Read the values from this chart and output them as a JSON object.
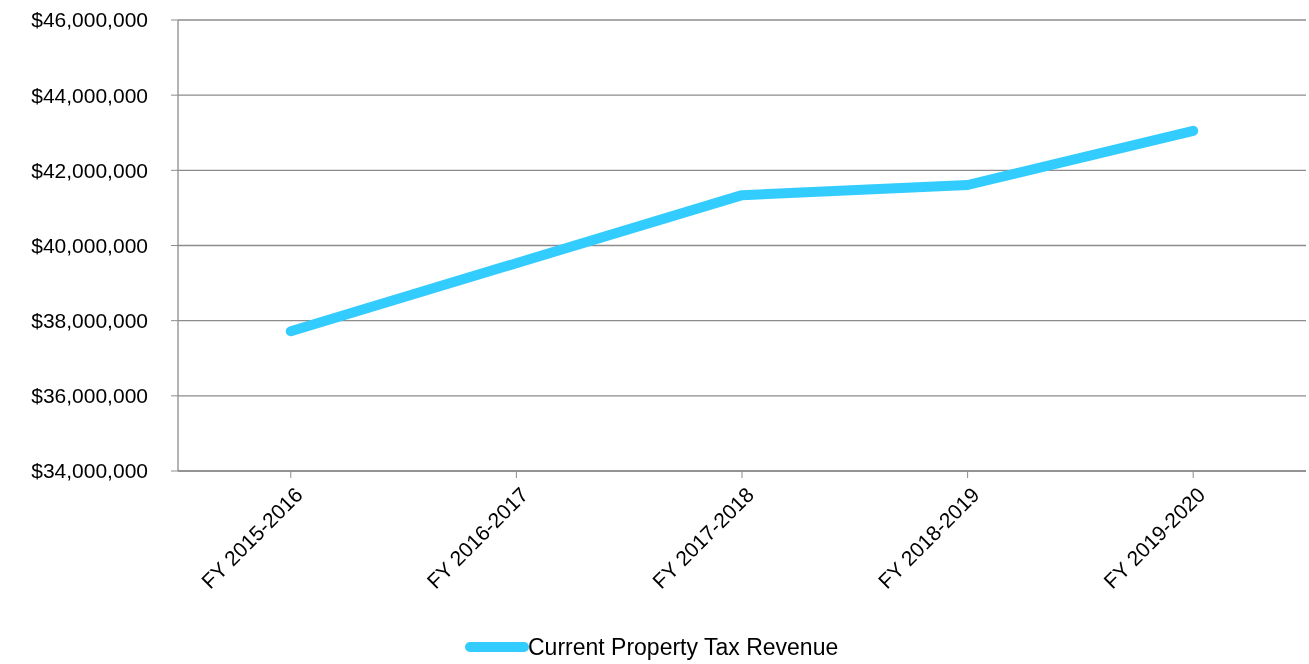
{
  "chart_data": {
    "type": "line",
    "categories": [
      "FY 2015-2016",
      "FY 2016-2017",
      "FY 2017-2018",
      "FY 2018-2019",
      "FY 2019-2020"
    ],
    "series": [
      {
        "name": "Current Property Tax Revenue",
        "color": "#33ccff",
        "values": [
          37720000,
          39530000,
          41340000,
          41610000,
          43050000
        ]
      }
    ],
    "ylim": [
      34000000,
      46000000
    ],
    "yticks": [
      {
        "value": 34000000,
        "label": "$34,000,000"
      },
      {
        "value": 36000000,
        "label": "$36,000,000"
      },
      {
        "value": 38000000,
        "label": "$38,000,000"
      },
      {
        "value": 40000000,
        "label": "$40,000,000"
      },
      {
        "value": 42000000,
        "label": "$42,000,000"
      },
      {
        "value": 44000000,
        "label": "$44,000,000"
      },
      {
        "value": 46000000,
        "label": "$46,000,000"
      }
    ],
    "grid": "y",
    "legend": "bottom",
    "marker": "none",
    "line_style": "solid"
  }
}
